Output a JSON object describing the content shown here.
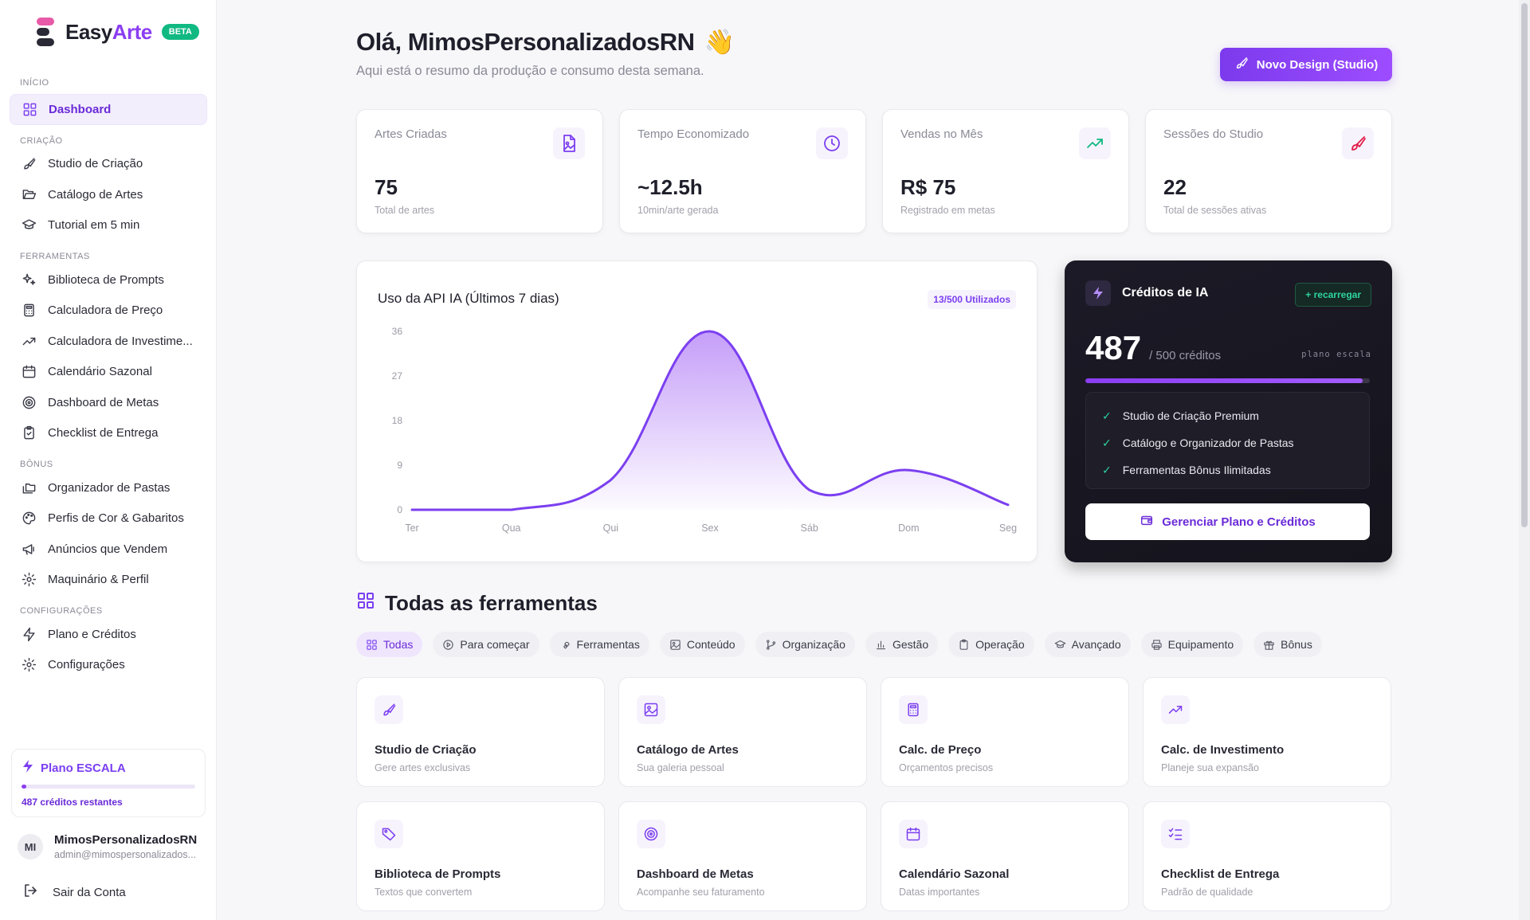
{
  "brand": {
    "name_a": "Easy",
    "name_b": "Arte",
    "badge": "BETA"
  },
  "sidebar": {
    "sections": [
      {
        "title": "INÍCIO",
        "items": [
          {
            "label": "Dashboard",
            "icon": "grid-icon",
            "active": true
          }
        ]
      },
      {
        "title": "CRIAÇÃO",
        "items": [
          {
            "label": "Studio de Criação",
            "icon": "brush-icon"
          },
          {
            "label": "Catálogo de Artes",
            "icon": "folder-open-icon"
          },
          {
            "label": "Tutorial em 5 min",
            "icon": "graduation-cap-icon"
          }
        ]
      },
      {
        "title": "FERRAMENTAS",
        "items": [
          {
            "label": "Biblioteca de Prompts",
            "icon": "sparkles-icon"
          },
          {
            "label": "Calculadora de Preço",
            "icon": "calculator-icon"
          },
          {
            "label": "Calculadora de Investime...",
            "icon": "trending-up-icon"
          },
          {
            "label": "Calendário Sazonal",
            "icon": "calendar-icon"
          },
          {
            "label": "Dashboard de Metas",
            "icon": "target-icon"
          },
          {
            "label": "Checklist de Entrega",
            "icon": "clipboard-check-icon"
          }
        ]
      },
      {
        "title": "BÔNUS",
        "items": [
          {
            "label": "Organizador de Pastas",
            "icon": "folders-icon"
          },
          {
            "label": "Perfis de Cor & Gabaritos",
            "icon": "palette-icon"
          },
          {
            "label": "Anúncios que Vendem",
            "icon": "megaphone-icon"
          },
          {
            "label": "Maquinário & Perfil",
            "icon": "gear-icon"
          }
        ]
      },
      {
        "title": "CONFIGURAÇÕES",
        "items": [
          {
            "label": "Plano e Créditos",
            "icon": "bolt-icon"
          },
          {
            "label": "Configurações",
            "icon": "gear-icon"
          }
        ]
      }
    ],
    "plan": {
      "title": "Plano ESCALA",
      "remaining": "487 créditos restantes",
      "progress": 0.026
    },
    "user": {
      "initials": "MI",
      "name": "MimosPersonalizadosRN",
      "email": "admin@mimospersonalizados..."
    },
    "logout": "Sair da Conta"
  },
  "header": {
    "greeting": "Olá, MimosPersonalizadosRN",
    "emoji": "👋",
    "subtitle": "Aqui está o resumo da produção e consumo desta semana.",
    "new_button": "Novo Design (Studio)"
  },
  "stats": [
    {
      "label": "Artes Criadas",
      "value": "75",
      "note": "Total de artes",
      "icon": "file-image-icon",
      "color": "#7b3ff0"
    },
    {
      "label": "Tempo Economizado",
      "value": "~12.5h",
      "note": "10min/arte gerada",
      "icon": "clock-icon",
      "color": "#7b3ff0"
    },
    {
      "label": "Vendas no Mês",
      "value": "R$ 75",
      "note": "Registrado em metas",
      "icon": "trending-up-icon",
      "color": "#10b981"
    },
    {
      "label": "Sessões do Studio",
      "value": "22",
      "note": "Total de sessões ativas",
      "icon": "brush-icon",
      "color": "#e11d48"
    }
  ],
  "usage_chart": {
    "title": "Uso da API IA (Últimos 7 dias)",
    "badge": "13/500 Utilizados"
  },
  "chart_data": {
    "type": "area",
    "title": "Uso da API IA (Últimos 7 dias)",
    "categories": [
      "Ter",
      "Qua",
      "Qui",
      "Sex",
      "Sáb",
      "Dom",
      "Seg"
    ],
    "values": [
      0,
      0,
      6,
      36,
      4,
      8,
      1
    ],
    "yticks": [
      0,
      9,
      18,
      27,
      36
    ],
    "ylim": [
      0,
      36
    ],
    "grid": false,
    "legend": "none",
    "color": "#7b3ff0"
  },
  "credits": {
    "title": "Créditos de IA",
    "recharge": "+ recarregar",
    "amount": "487",
    "total": "/ 500 créditos",
    "plan_tag": "plano escala",
    "progress": 0.974,
    "features": [
      "Studio de Criação Premium",
      "Catálogo e Organizador de Pastas",
      "Ferramentas Bônus Ilimitadas"
    ],
    "manage_button": "Gerenciar Plano e Créditos"
  },
  "tools": {
    "title": "Todas as ferramentas",
    "filters": [
      {
        "label": "Todas",
        "icon": "grid-icon",
        "active": true
      },
      {
        "label": "Para começar",
        "icon": "play-circle-icon"
      },
      {
        "label": "Ferramentas",
        "icon": "wrench-icon"
      },
      {
        "label": "Conteúdo",
        "icon": "image-icon"
      },
      {
        "label": "Organização",
        "icon": "git-branch-icon"
      },
      {
        "label": "Gestão",
        "icon": "bar-chart-icon"
      },
      {
        "label": "Operação",
        "icon": "clipboard-icon"
      },
      {
        "label": "Avançado",
        "icon": "graduation-cap-icon"
      },
      {
        "label": "Equipamento",
        "icon": "printer-icon"
      },
      {
        "label": "Bônus",
        "icon": "gift-icon"
      }
    ],
    "cards": [
      {
        "name": "Studio de Criação",
        "desc": "Gere artes exclusivas",
        "icon": "brush-icon"
      },
      {
        "name": "Catálogo de Artes",
        "desc": "Sua galeria pessoal",
        "icon": "image-icon"
      },
      {
        "name": "Calc. de Preço",
        "desc": "Orçamentos precisos",
        "icon": "calculator-icon"
      },
      {
        "name": "Calc. de Investimento",
        "desc": "Planeje sua expansão",
        "icon": "trending-up-icon"
      },
      {
        "name": "Biblioteca de Prompts",
        "desc": "Textos que convertem",
        "icon": "tag-icon"
      },
      {
        "name": "Dashboard de Metas",
        "desc": "Acompanhe seu faturamento",
        "icon": "target-icon"
      },
      {
        "name": "Calendário Sazonal",
        "desc": "Datas importantes",
        "icon": "calendar-icon"
      },
      {
        "name": "Checklist de Entrega",
        "desc": "Padrão de qualidade",
        "icon": "list-check-icon"
      }
    ]
  }
}
